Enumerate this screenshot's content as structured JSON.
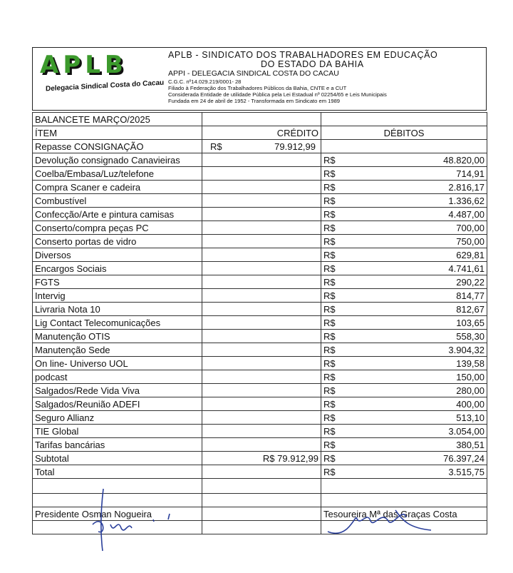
{
  "header": {
    "logo_text": "APLB",
    "logo_subtitle": "Delegacia Sindical Costa do Cacau",
    "title_line1": "APLB - SINDICATO  DOS  TRABALHADORES  EM  EDUCAÇÃO",
    "title_line2": "DO ESTADO DA BAHIA",
    "subtitle": "APPI - DELEGACIA SINDICAL COSTA DO CACAU",
    "info": [
      "C.G.C. nº14.029.219/0001- 28",
      "Filiado à Federação dos Trabalhadores Públicos da Bahia, CNTE e a CUT",
      "Considerada Entidade de utilidade Pública pela Lei Estadual nº 02254/65 e Leis Municipais",
      "Fundada em 24 de abril de 1952 - Transformada em Sindicato em 1989"
    ]
  },
  "table": {
    "title": "BALANCETE MARÇO/2025",
    "col_item": "ÍTEM",
    "col_credit": "CRÉDITO",
    "col_debit": "DÉBITOS",
    "currency": "R$",
    "credit_row": {
      "item": "Repasse CONSIGNAÇÃO",
      "value": "79.912,99"
    },
    "debits": [
      {
        "item": "Devolução consignado Canavieiras",
        "value": "48.820,00"
      },
      {
        "item": "Coelba/Embasa/Luz/telefone",
        "value": "714,91"
      },
      {
        "item": "Compra Scaner e cadeira",
        "value": "2.816,17"
      },
      {
        "item": "Combustível",
        "value": "1.336,62"
      },
      {
        "item": "Confecção/Arte e pintura camisas",
        "value": "4.487,00"
      },
      {
        "item": "Conserto/compra peças PC",
        "value": "700,00"
      },
      {
        "item": "Conserto portas de vidro",
        "value": "750,00"
      },
      {
        "item": "Diversos",
        "value": "629,81"
      },
      {
        "item": "Encargos Sociais",
        "value": "4.741,61"
      },
      {
        "item": "FGTS",
        "value": "290,22"
      },
      {
        "item": "Intervig",
        "value": "814,77"
      },
      {
        "item": "Livraria Nota 10",
        "value": "812,67"
      },
      {
        "item": "Lig Contact Telecomunicações",
        "value": "103,65"
      },
      {
        "item": "Manutenção OTIS",
        "value": "558,30"
      },
      {
        "item": "Manutenção Sede",
        "value": "3.904,32"
      },
      {
        "item": "On line- Universo UOL",
        "value": "139,58"
      },
      {
        "item": "podcast",
        "value": "150,00"
      },
      {
        "item": "Salgados/Rede Vida Viva",
        "value": "280,00"
      },
      {
        "item": "Salgados/Reunião ADEFI",
        "value": "400,00"
      },
      {
        "item": "Seguro Allianz",
        "value": "513,10"
      },
      {
        "item": "TIE Global",
        "value": "3.054,00"
      },
      {
        "item": "Tarifas bancárias",
        "value": "380,51"
      }
    ],
    "subtotal": {
      "label": "Subtotal",
      "credit": "R$ 79.912,99",
      "debit": "76.397,24"
    },
    "total": {
      "label": "Total",
      "debit": "3.515,75"
    },
    "president": "Presidente Osman Nogueira",
    "treasurer": "Tesoureira Mª das Graças Costa"
  }
}
